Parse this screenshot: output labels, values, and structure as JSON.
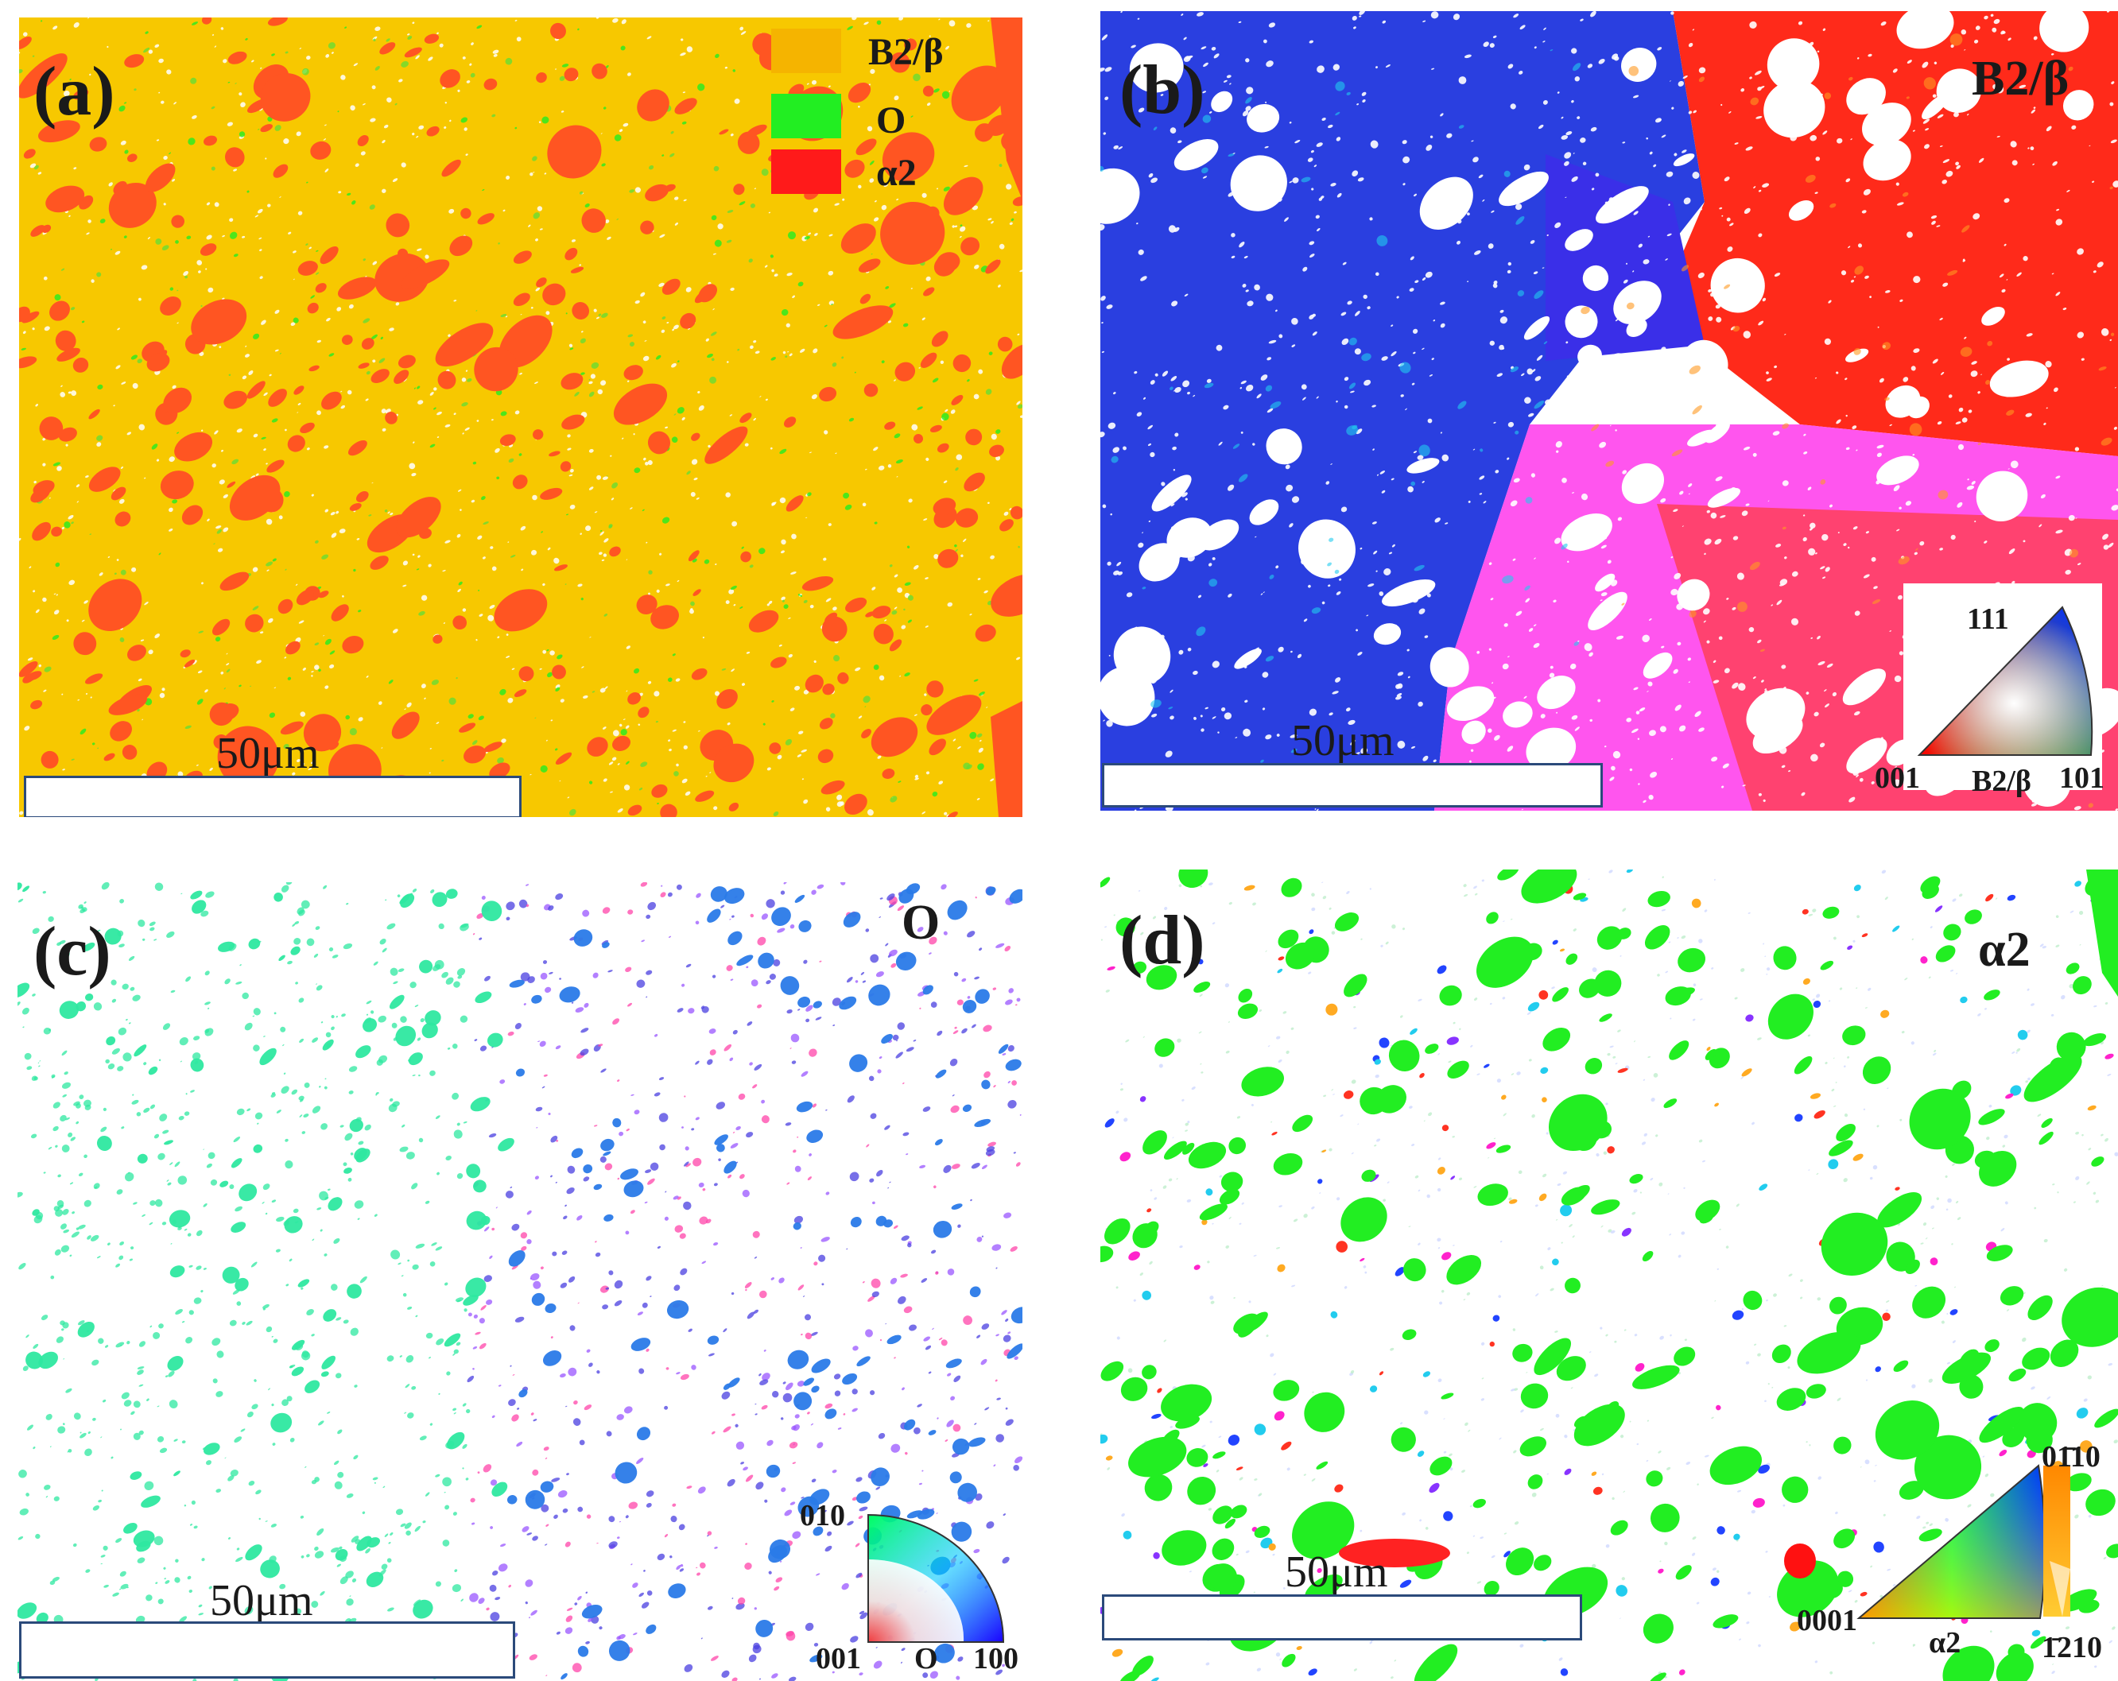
{
  "panels": {
    "a": {
      "label": "(a)",
      "scale_bar": "50μm",
      "legend": [
        {
          "name": "B2/β",
          "color": "#f5b400"
        },
        {
          "name": "O",
          "color": "#22ee22"
        },
        {
          "name": "α2",
          "color": "#ff1a1a"
        }
      ]
    },
    "b": {
      "label": "(b)",
      "phase": "B2/β",
      "scale_bar": "50μm",
      "key": {
        "top": "111",
        "left": "001",
        "right": "101",
        "phase": "B2/β"
      }
    },
    "c": {
      "label": "(c)",
      "phase": "O",
      "scale_bar": "50μm",
      "key": {
        "top": "010",
        "left": "001",
        "right": "100",
        "phase": "O"
      }
    },
    "d": {
      "label": "(d)",
      "phase": "α2",
      "scale_bar": "50μm",
      "key": {
        "top": "01̄10",
        "left": "0001",
        "right": "1̄210",
        "phase": "α2"
      }
    }
  },
  "colors": {
    "b2_matrix": "#f7c800",
    "alpha2_orange": "#ff5522",
    "o_green": "#2ee8a0",
    "alpha2_green": "#22ee22",
    "b2_blue": "#2a3fe0",
    "b2_red": "#ff2a1a",
    "b2_magenta": "#ff55ee"
  }
}
